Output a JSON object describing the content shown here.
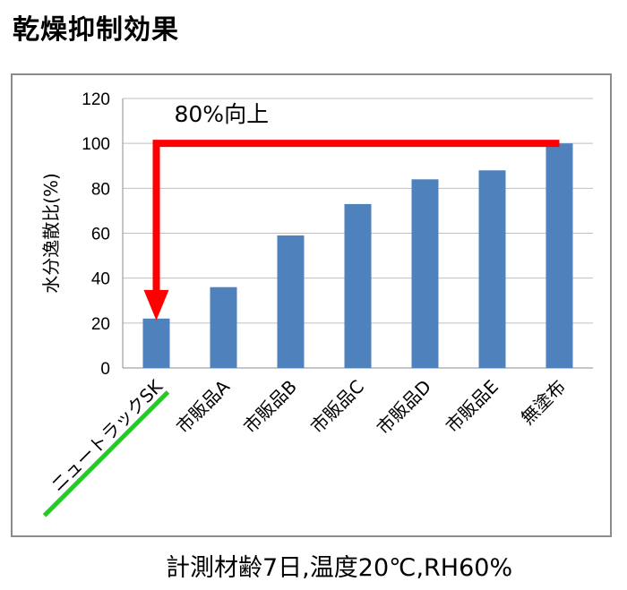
{
  "page_title": "乾燥抑制効果",
  "footnote": "計測材齢7日,温度20℃,RH60%",
  "colors": {
    "bar": "#4f81bd",
    "arrow": "#ff0000",
    "underline": "#22cc22",
    "grid": "#bfbfbf"
  },
  "chart_data": {
    "type": "bar",
    "title": "",
    "xlabel": "",
    "ylabel": "水分逸散比(%)",
    "ylim": [
      0,
      120
    ],
    "yticks": [
      0,
      20,
      40,
      60,
      80,
      100,
      120
    ],
    "grid": true,
    "categories": [
      "ニュートラックSK",
      "市販品A",
      "市販品B",
      "市販品C",
      "市販品D",
      "市販品E",
      "無塗布"
    ],
    "values": [
      22,
      36,
      59,
      73,
      84,
      88,
      100
    ],
    "highlighted_category": "ニュートラックSK",
    "annotation": {
      "text": "80%向上",
      "from_category": "無塗布",
      "to_category": "ニュートラックSK",
      "from_value": 100,
      "to_value": 22
    }
  }
}
